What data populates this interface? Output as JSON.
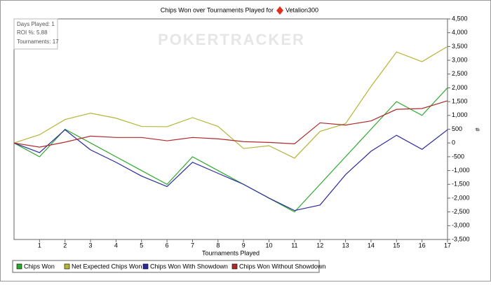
{
  "chart_data": {
    "type": "line",
    "title": "Chips Won over Tournaments Played for",
    "player": "Vetalion300",
    "watermark": "POKERTRACKER",
    "info": [
      "Days Played: 1",
      "ROI %: 5.88",
      "Tournaments: 17"
    ],
    "x_label": "Tournaments Played",
    "y_label": "#",
    "x": [
      0,
      1,
      2,
      3,
      4,
      5,
      6,
      7,
      8,
      9,
      10,
      11,
      12,
      13,
      14,
      15,
      16,
      17
    ],
    "xlim": [
      0,
      17
    ],
    "xticks": [
      1,
      2,
      3,
      4,
      5,
      6,
      7,
      8,
      9,
      10,
      11,
      12,
      13,
      14,
      15,
      16,
      17
    ],
    "ylim": [
      -3500,
      4500
    ],
    "yticks": [
      {
        "value": -3500,
        "label": "-3,500"
      },
      {
        "value": -3000,
        "label": "-3,000"
      },
      {
        "value": -2500,
        "label": "-2,500"
      },
      {
        "value": -2000,
        "label": "-2,000"
      },
      {
        "value": -1500,
        "label": "-1,500"
      },
      {
        "value": -1000,
        "label": "-1,000"
      },
      -500,
      0,
      500,
      {
        "value": 1000,
        "label": "1,000"
      },
      {
        "value": 1500,
        "label": "1,500"
      },
      {
        "value": 2000,
        "label": "2,000"
      },
      {
        "value": 2500,
        "label": "2,500"
      },
      {
        "value": 3000,
        "label": "3,000"
      },
      {
        "value": 3500,
        "label": "3,500"
      },
      {
        "value": 4000,
        "label": "4,000"
      },
      {
        "value": 4500,
        "label": "4,500"
      }
    ],
    "series": [
      {
        "name": "Chips Won",
        "color": "#2ea82e",
        "values": [
          0,
          -500,
          500,
          0,
          -500,
          -1000,
          -1500,
          -500,
          -1000,
          -1500,
          -2000,
          -2500,
          -1500,
          -500,
          500,
          1500,
          1000,
          2000
        ]
      },
      {
        "name": "Net Expected Chips Won",
        "color": "#b5b53a",
        "values": [
          0,
          300,
          850,
          1080,
          900,
          600,
          590,
          920,
          600,
          -200,
          -100,
          -550,
          420,
          700,
          2050,
          3300,
          2950,
          3500
        ]
      },
      {
        "name": "Chips Won With Showdown",
        "color": "#2b2b9c",
        "values": [
          0,
          -350,
          480,
          -250,
          -700,
          -1200,
          -1580,
          -700,
          -1100,
          -1500,
          -2000,
          -2450,
          -2250,
          -1150,
          -300,
          280,
          -230,
          480
        ]
      },
      {
        "name": "Chips Won Without Showdown",
        "color": "#b02a2a",
        "values": [
          0,
          -150,
          30,
          250,
          200,
          200,
          80,
          200,
          150,
          50,
          20,
          -30,
          730,
          650,
          800,
          1220,
          1250,
          1530
        ]
      }
    ]
  }
}
